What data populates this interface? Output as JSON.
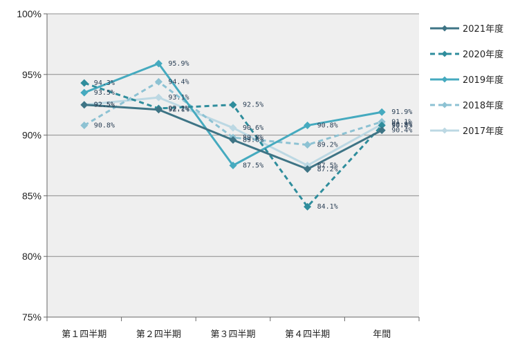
{
  "chart_data": {
    "type": "line",
    "categories": [
      "第１四半期",
      "第２四半期",
      "第３四半期",
      "第４四半期",
      "年間"
    ],
    "ylim": [
      75,
      100
    ],
    "yticks": [
      75,
      80,
      85,
      90,
      95,
      100
    ],
    "ytick_labels": [
      "75%",
      "80%",
      "85%",
      "90%",
      "95%",
      "100%"
    ],
    "grid": true,
    "legend_position": "right",
    "series": [
      {
        "name": "2021年度",
        "values": [
          92.5,
          92.1,
          89.6,
          87.2,
          90.4
        ],
        "labels": [
          "92.5%",
          "92.1%",
          "89.6%",
          "87.2%",
          "90.4%"
        ],
        "color": "#3e7485",
        "dashed": false
      },
      {
        "name": "2020年度",
        "values": [
          94.3,
          92.2,
          92.5,
          84.1,
          90.8
        ],
        "labels": [
          "94.3%",
          "92.2%",
          "92.5%",
          "84.1%",
          "90.8%"
        ],
        "color": "#2f8d9c",
        "dashed": true
      },
      {
        "name": "2019年度",
        "values": [
          93.5,
          95.9,
          87.5,
          90.8,
          91.9
        ],
        "labels": [
          "93.5%",
          "95.9%",
          "87.5%",
          "90.8%",
          "91.9%"
        ],
        "color": "#45aabf",
        "dashed": false
      },
      {
        "name": "2018年度",
        "values": [
          90.8,
          94.4,
          89.8,
          89.2,
          91.1
        ],
        "labels": [
          "90.8%",
          "94.4%",
          "89.8%",
          "89.2%",
          "91.1%"
        ],
        "color": "#8dc2d3",
        "dashed": true
      },
      {
        "name": "2017年度",
        "values": [
          92.5,
          93.1,
          90.6,
          87.5,
          90.9
        ],
        "labels": [
          "92.5%",
          "93.1%",
          "90.6%",
          "87.5%",
          "90.9%"
        ],
        "color": "#bcd8e3",
        "dashed": false
      }
    ]
  }
}
